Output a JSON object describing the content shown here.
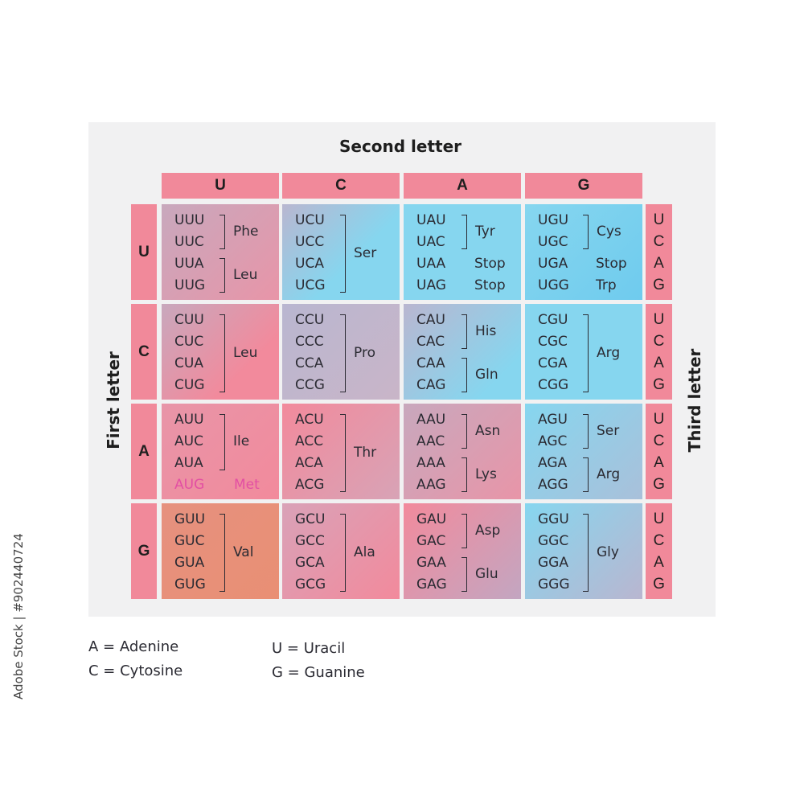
{
  "title_second": "Second letter",
  "title_first": "First letter",
  "title_third": "Third letter",
  "columns": [
    "U",
    "C",
    "A",
    "G"
  ],
  "rows": [
    "U",
    "C",
    "A",
    "G"
  ],
  "third_letters": [
    "U",
    "C",
    "A",
    "G"
  ],
  "cells": [
    [
      {
        "codons": [
          "UUU",
          "UUC",
          "UUA",
          "UUG"
        ],
        "groups": [
          {
            "label": "Phe",
            "start": 0,
            "end": 1
          },
          {
            "label": "Leu",
            "start": 2,
            "end": 3
          }
        ]
      },
      {
        "codons": [
          "UCU",
          "UCC",
          "UCA",
          "UCG"
        ],
        "groups": [
          {
            "label": "Ser",
            "start": 0,
            "end": 3
          }
        ]
      },
      {
        "codons": [
          "UAU",
          "UAC",
          "UAA",
          "UAG"
        ],
        "groups": [
          {
            "label": "Tyr",
            "start": 0,
            "end": 1
          },
          {
            "label": "Stop",
            "start": 2,
            "end": 2,
            "plain": true
          },
          {
            "label": "Stop",
            "start": 3,
            "end": 3,
            "plain": true
          }
        ]
      },
      {
        "codons": [
          "UGU",
          "UGC",
          "UGA",
          "UGG"
        ],
        "groups": [
          {
            "label": "Cys",
            "start": 0,
            "end": 1
          },
          {
            "label": "Stop",
            "start": 2,
            "end": 2,
            "plain": true
          },
          {
            "label": "Trp",
            "start": 3,
            "end": 3,
            "plain": true
          }
        ]
      }
    ],
    [
      {
        "codons": [
          "CUU",
          "CUC",
          "CUA",
          "CUG"
        ],
        "groups": [
          {
            "label": "Leu",
            "start": 0,
            "end": 3
          }
        ]
      },
      {
        "codons": [
          "CCU",
          "CCC",
          "CCA",
          "CCG"
        ],
        "groups": [
          {
            "label": "Pro",
            "start": 0,
            "end": 3
          }
        ]
      },
      {
        "codons": [
          "CAU",
          "CAC",
          "CAA",
          "CAG"
        ],
        "groups": [
          {
            "label": "His",
            "start": 0,
            "end": 1
          },
          {
            "label": "Gln",
            "start": 2,
            "end": 3
          }
        ]
      },
      {
        "codons": [
          "CGU",
          "CGC",
          "CGA",
          "CGG"
        ],
        "groups": [
          {
            "label": "Arg",
            "start": 0,
            "end": 3
          }
        ]
      }
    ],
    [
      {
        "codons": [
          "AUU",
          "AUC",
          "AUA",
          "AUG"
        ],
        "start_codon": 3,
        "groups": [
          {
            "label": "Ile",
            "start": 0,
            "end": 2
          },
          {
            "label": "Met",
            "start": 3,
            "end": 3,
            "plain": true,
            "highlight": true
          }
        ]
      },
      {
        "codons": [
          "ACU",
          "ACC",
          "ACA",
          "ACG"
        ],
        "groups": [
          {
            "label": "Thr",
            "start": 0,
            "end": 3
          }
        ]
      },
      {
        "codons": [
          "AAU",
          "AAC",
          "AAA",
          "AAG"
        ],
        "groups": [
          {
            "label": "Asn",
            "start": 0,
            "end": 1
          },
          {
            "label": "Lys",
            "start": 2,
            "end": 3
          }
        ]
      },
      {
        "codons": [
          "AGU",
          "AGC",
          "AGA",
          "AGG"
        ],
        "groups": [
          {
            "label": "Ser",
            "start": 0,
            "end": 1
          },
          {
            "label": "Arg",
            "start": 2,
            "end": 3
          }
        ]
      }
    ],
    [
      {
        "codons": [
          "GUU",
          "GUC",
          "GUA",
          "GUG"
        ],
        "groups": [
          {
            "label": "Val",
            "start": 0,
            "end": 3
          }
        ]
      },
      {
        "codons": [
          "GCU",
          "GCC",
          "GCA",
          "GCG"
        ],
        "groups": [
          {
            "label": "Ala",
            "start": 0,
            "end": 3
          }
        ]
      },
      {
        "codons": [
          "GAU",
          "GAC",
          "GAA",
          "GAG"
        ],
        "groups": [
          {
            "label": "Asp",
            "start": 0,
            "end": 1
          },
          {
            "label": "Glu",
            "start": 2,
            "end": 3
          }
        ]
      },
      {
        "codons": [
          "GGU",
          "GGC",
          "GGA",
          "GGG"
        ],
        "groups": [
          {
            "label": "Gly",
            "start": 0,
            "end": 3
          }
        ]
      }
    ]
  ],
  "legend": {
    "adenine": "A = Adenine",
    "cytosine": "C = Cytosine",
    "uracil": "U = Uracil",
    "guanine": "G = Guanine"
  },
  "side_caption": "Adobe Stock | #902440724",
  "colors": {
    "header_pink": "#f1899a",
    "pink": "#f28a9c",
    "blue": "#86d6ef",
    "orange": "#e98f74",
    "start_codon": "#e34fa3",
    "panel": "#f1f1f2"
  }
}
